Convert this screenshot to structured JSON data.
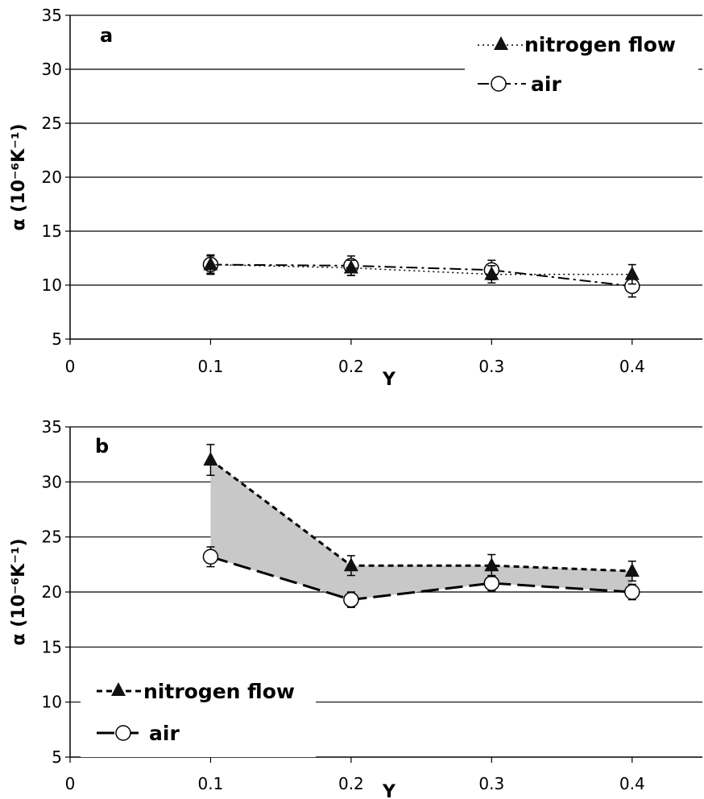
{
  "chart_data": [
    {
      "type": "line",
      "panel_label": "a",
      "xlabel": "Y",
      "ylabel": "α (10⁻⁶K⁻¹)",
      "xlim": [
        0,
        0.45
      ],
      "ylim": [
        5,
        35
      ],
      "xticks": [
        "0",
        "0.1",
        "0.2",
        "0.3",
        "0.4"
      ],
      "yticks": [
        "5",
        "10",
        "15",
        "20",
        "25",
        "30",
        "35"
      ],
      "grid": "horizontal",
      "shaded_between_series": false,
      "legend_placement": "top-right",
      "x": [
        0.1,
        0.2,
        0.3,
        0.4
      ],
      "series": [
        {
          "name": "nitrogen flow",
          "marker": "filled-triangle",
          "line": "dotted",
          "values": [
            11.9,
            11.6,
            11.0,
            11.0
          ],
          "err": [
            0.8,
            0.7,
            0.8,
            0.9
          ]
        },
        {
          "name": "air",
          "marker": "open-circle",
          "line": "dash-dot",
          "values": [
            11.9,
            11.8,
            11.4,
            9.9
          ],
          "err": [
            0.9,
            0.9,
            0.9,
            1.0
          ]
        }
      ]
    },
    {
      "type": "line",
      "panel_label": "b",
      "xlabel": "Y",
      "ylabel": "α (10⁻⁶K⁻¹)",
      "xlim": [
        0,
        0.45
      ],
      "ylim": [
        5,
        35
      ],
      "xticks": [
        "0",
        "0.1",
        "0.2",
        "0.3",
        "0.4"
      ],
      "yticks": [
        "5",
        "10",
        "15",
        "20",
        "25",
        "30",
        "35"
      ],
      "grid": "horizontal",
      "shaded_between_series": true,
      "legend_placement": "bottom-left",
      "x": [
        0.1,
        0.2,
        0.3,
        0.4
      ],
      "series": [
        {
          "name": "nitrogen flow",
          "marker": "filled-triangle",
          "line": "dashed",
          "values": [
            32.0,
            22.4,
            22.4,
            21.9
          ],
          "err": [
            1.4,
            0.9,
            1.0,
            0.9
          ]
        },
        {
          "name": "air",
          "marker": "open-circle",
          "line": "long-dash",
          "values": [
            23.2,
            19.3,
            20.8,
            20.0
          ],
          "err": [
            0.9,
            0.7,
            0.7,
            0.7
          ]
        }
      ]
    }
  ],
  "colors": {
    "fill_between": "#c8c8c8",
    "axis": "#000000",
    "grid": "#000000"
  }
}
